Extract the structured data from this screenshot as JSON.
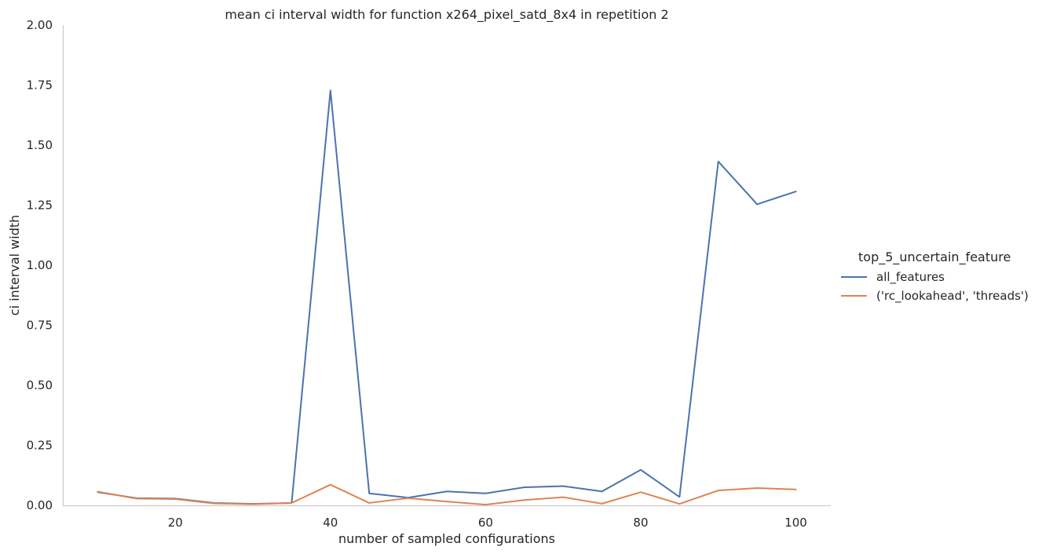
{
  "chart_data": {
    "type": "line",
    "title": "mean ci interval width for function x264_pixel_satd_8x4 in repetition 2",
    "xlabel": "number of sampled configurations",
    "ylabel": "ci interval width",
    "xlim": [
      5.5,
      104.5
    ],
    "ylim": [
      0,
      2.0
    ],
    "xticks": [
      20,
      40,
      60,
      80,
      100
    ],
    "yticks": [
      0.0,
      0.25,
      0.5,
      0.75,
      1.0,
      1.25,
      1.5,
      1.75,
      2.0
    ],
    "ytick_labels": [
      "0.00",
      "0.25",
      "0.50",
      "0.75",
      "1.00",
      "1.25",
      "1.50",
      "1.75",
      "2.00"
    ],
    "grid": false,
    "legend": {
      "title": "top_5_uncertain_feature",
      "placement": "right"
    },
    "x": [
      10,
      15,
      20,
      25,
      30,
      35,
      40,
      45,
      50,
      55,
      60,
      65,
      70,
      75,
      80,
      85,
      90,
      95,
      100
    ],
    "series": [
      {
        "name": "all_features",
        "color": "#4c72b0",
        "values": [
          0.055,
          0.03,
          0.028,
          0.01,
          0.006,
          0.01,
          1.728,
          0.05,
          0.032,
          0.058,
          0.05,
          0.075,
          0.08,
          0.058,
          0.148,
          0.035,
          1.432,
          1.254,
          1.307
        ]
      },
      {
        "name": "('rc_lookahead', 'threads')",
        "color": "#dd8452",
        "values": [
          0.057,
          0.028,
          0.026,
          0.008,
          0.005,
          0.01,
          0.086,
          0.01,
          0.03,
          0.016,
          0.003,
          0.022,
          0.034,
          0.007,
          0.055,
          0.006,
          0.062,
          0.072,
          0.066
        ]
      }
    ]
  }
}
